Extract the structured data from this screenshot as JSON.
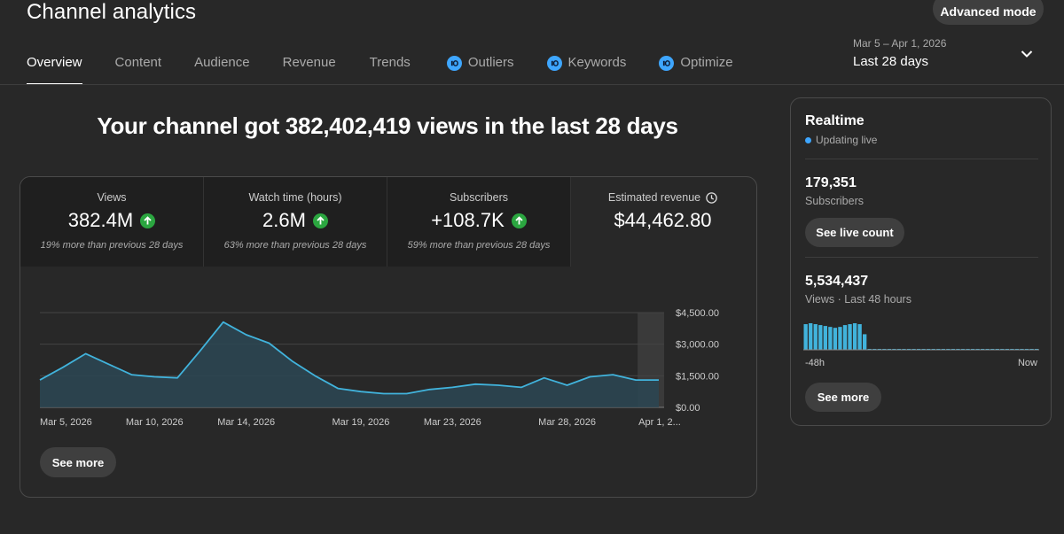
{
  "header": {
    "title": "Channel analytics",
    "advanced_mode_label": "Advanced mode"
  },
  "tabs": [
    {
      "label": "Overview",
      "active": true,
      "has_icon": false
    },
    {
      "label": "Content",
      "active": false,
      "has_icon": false
    },
    {
      "label": "Audience",
      "active": false,
      "has_icon": false
    },
    {
      "label": "Revenue",
      "active": false,
      "has_icon": false
    },
    {
      "label": "Trends",
      "active": false,
      "has_icon": false
    },
    {
      "label": "Outliers",
      "active": false,
      "has_icon": true,
      "icon": "vidiq-icon"
    },
    {
      "label": "Keywords",
      "active": false,
      "has_icon": true,
      "icon": "vidiq-icon"
    },
    {
      "label": "Optimize",
      "active": false,
      "has_icon": true,
      "icon": "vidiq-icon"
    }
  ],
  "date_picker": {
    "range": "Mar 5 – Apr 1, 2026",
    "label": "Last 28 days",
    "icon": "chevron-down-icon"
  },
  "headline": "Your channel got 382,402,419 views in the last 28 days",
  "metrics": [
    {
      "label": "Views",
      "value": "382.4M",
      "trend": "up",
      "sub": "19% more than previous 28 days"
    },
    {
      "label": "Watch time (hours)",
      "value": "2.6M",
      "trend": "up",
      "sub": "63% more than previous 28 days"
    },
    {
      "label": "Subscribers",
      "value": "+108.7K",
      "trend": "up",
      "sub": "59% more than previous 28 days"
    },
    {
      "label": "Estimated revenue",
      "value": "$44,462.80",
      "trend": null,
      "sub": "",
      "icon": "clock-icon"
    }
  ],
  "colors": {
    "line": "#41b3dc",
    "area": "#2b4753",
    "trend_up": "#2ba640",
    "live_dot": "#3ea6ff",
    "bars": "#41b3dc"
  },
  "chart_data": {
    "type": "area",
    "selected_metric": "Estimated revenue",
    "x_ticks": [
      "Mar 5, 2026",
      "Mar 10, 2026",
      "Mar 14, 2026",
      "Mar 19, 2026",
      "Mar 23, 2026",
      "Mar 28, 2026",
      "Apr 1, 2..."
    ],
    "y_ticks": [
      "$4,500.00",
      "$3,000.00",
      "$1,500.00",
      "$0.00"
    ],
    "ylim": [
      0,
      4500
    ],
    "x": [
      "2026-03-05",
      "2026-03-06",
      "2026-03-07",
      "2026-03-08",
      "2026-03-09",
      "2026-03-10",
      "2026-03-11",
      "2026-03-12",
      "2026-03-13",
      "2026-03-14",
      "2026-03-15",
      "2026-03-16",
      "2026-03-17",
      "2026-03-18",
      "2026-03-19",
      "2026-03-20",
      "2026-03-21",
      "2026-03-22",
      "2026-03-23",
      "2026-03-24",
      "2026-03-25",
      "2026-03-26",
      "2026-03-27",
      "2026-03-28",
      "2026-03-29",
      "2026-03-30",
      "2026-03-31",
      "2026-04-01"
    ],
    "values": [
      1300,
      1900,
      2550,
      2050,
      1550,
      1450,
      1400,
      2700,
      4050,
      3450,
      3050,
      2200,
      1500,
      900,
      750,
      650,
      650,
      850,
      950,
      1100,
      1050,
      950,
      1400,
      1050,
      1450,
      1550,
      1300,
      1300
    ],
    "partial_last_point": true,
    "grid": true
  },
  "chart_see_more": "See more",
  "realtime": {
    "title": "Realtime",
    "status": "Updating live",
    "subscribers_value": "179,351",
    "subscribers_label": "Subscribers",
    "see_live_count": "See live count",
    "views_value": "5,534,437",
    "views_label": "Views · Last 48 hours",
    "axis_start": "-48h",
    "axis_end": "Now",
    "see_more": "See more",
    "bars_48h": [
      28,
      29,
      28,
      27,
      26,
      25,
      24,
      25,
      27,
      28,
      29,
      28,
      17,
      1,
      1,
      1,
      1,
      1,
      1,
      1,
      1,
      1,
      1,
      1,
      1,
      1,
      1,
      1,
      1,
      1,
      1,
      1,
      1,
      1,
      1,
      1,
      1,
      1,
      1,
      1,
      1,
      1,
      1,
      1,
      1,
      1,
      1,
      1
    ]
  }
}
